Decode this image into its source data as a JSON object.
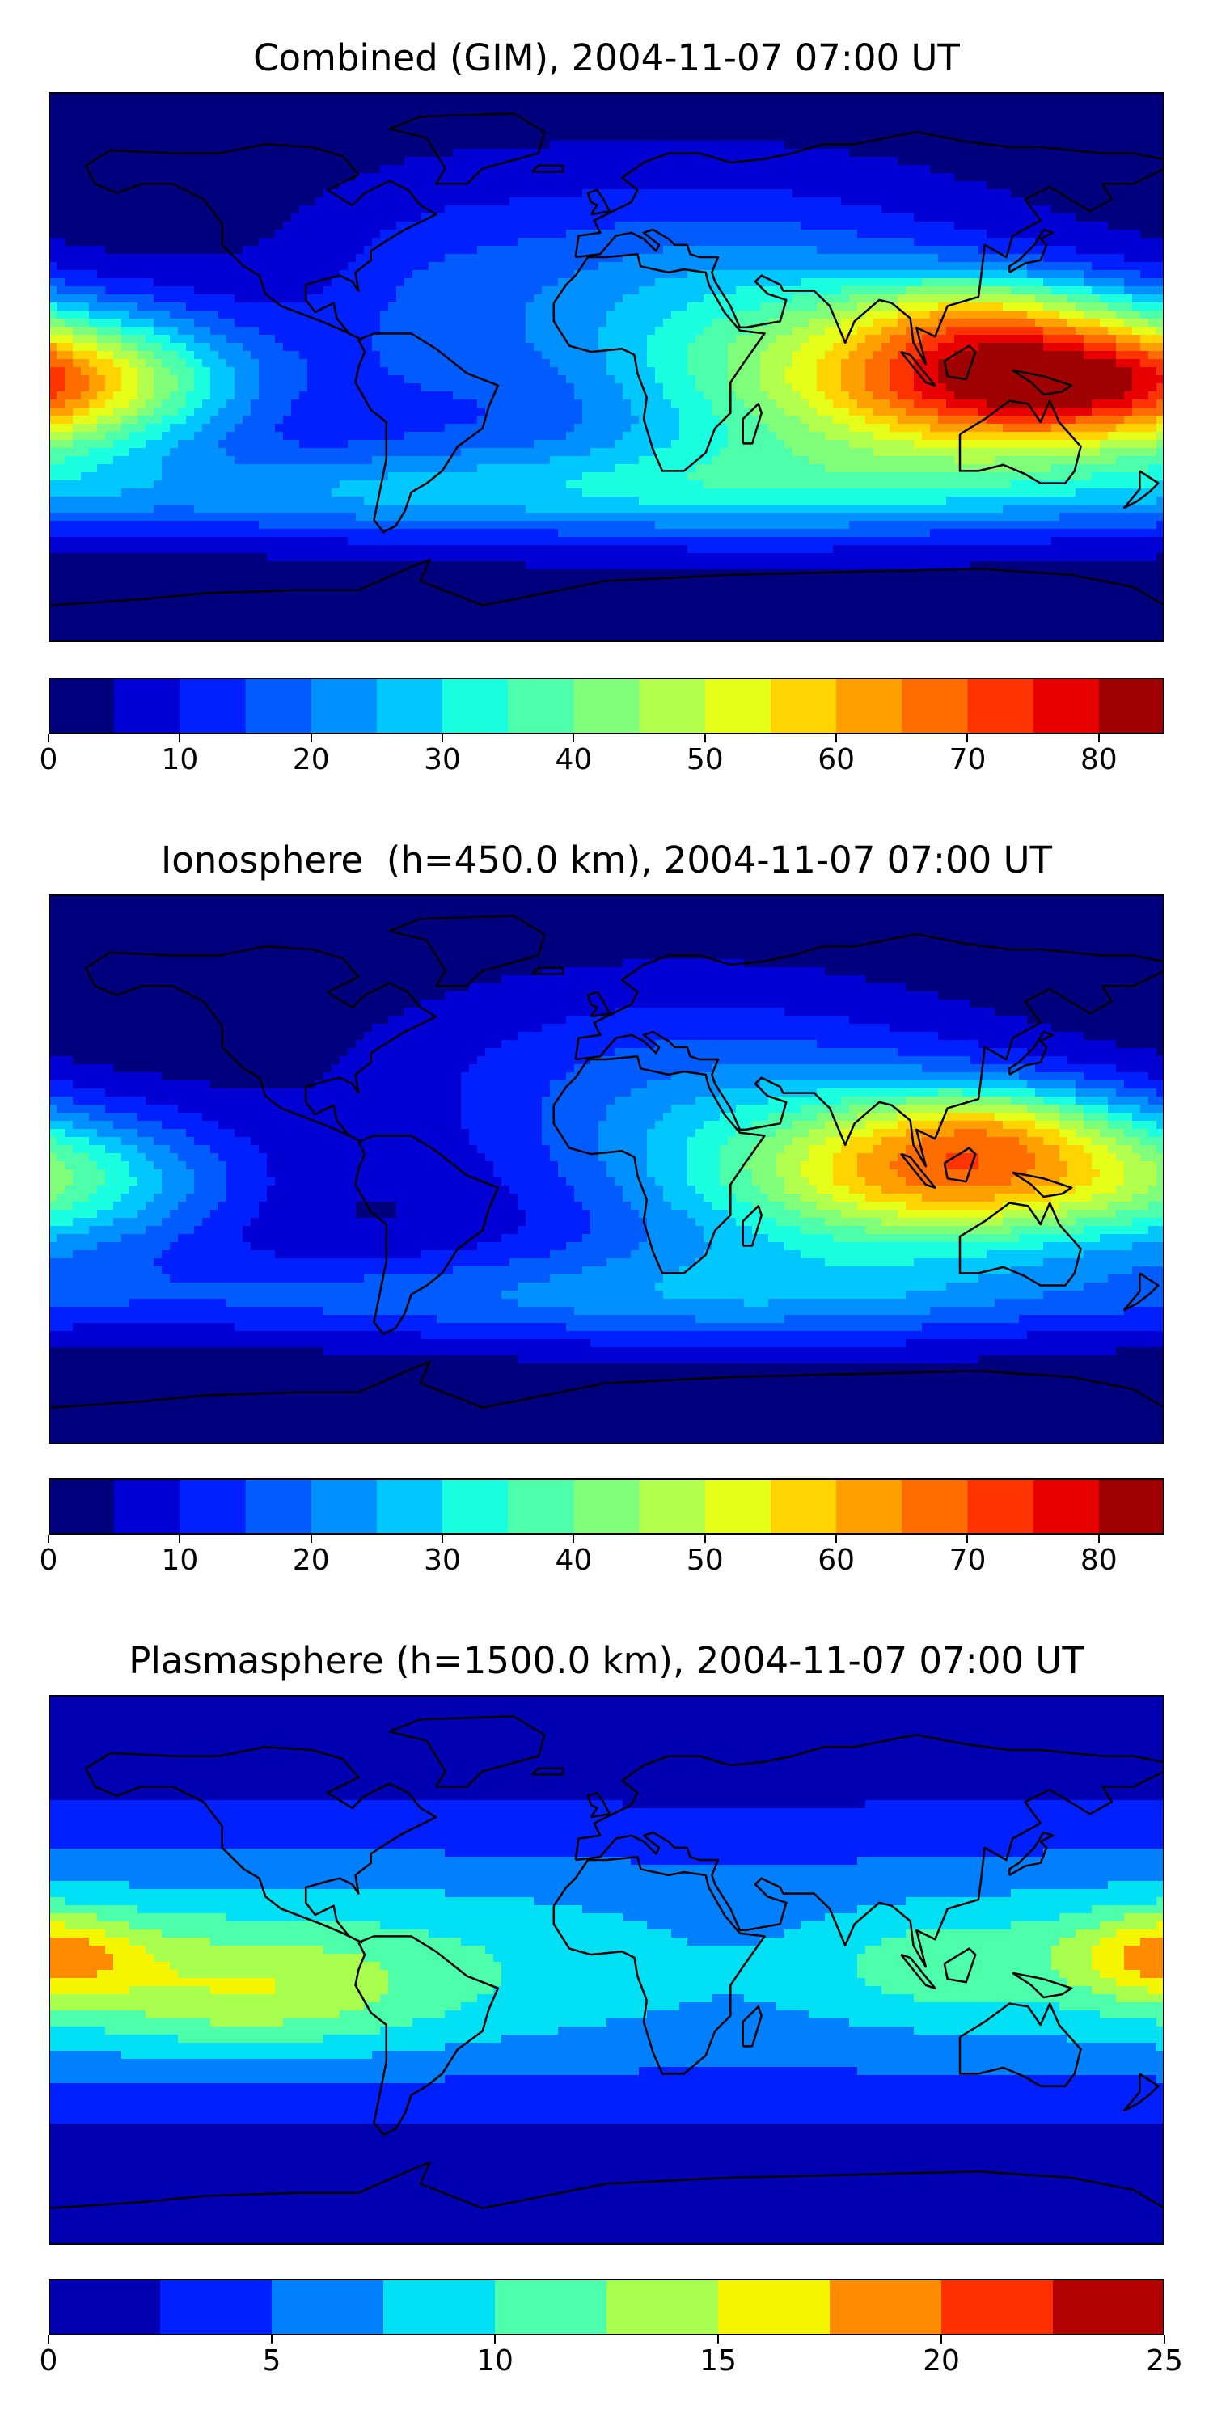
{
  "panels": [
    {
      "title": "Combined (GIM), 2004-11-07 07:00 UT",
      "colorbar": {
        "min": 0,
        "max": 85,
        "step": 5,
        "ticks": [
          "0",
          "10",
          "20",
          "30",
          "40",
          "50",
          "60",
          "70",
          "80"
        ],
        "tick_values": [
          0,
          10,
          20,
          30,
          40,
          50,
          60,
          70,
          80
        ],
        "colors": [
          "#00007f",
          "#0000d4",
          "#0020ff",
          "#005cff",
          "#0090ff",
          "#00c8ff",
          "#1affe0",
          "#4dffaa",
          "#80ff7a",
          "#b3ff4d",
          "#e6ff1a",
          "#ffd400",
          "#ffa000",
          "#ff6c00",
          "#ff3400",
          "#e80000",
          "#9f0000"
        ]
      },
      "field": {
        "base": 2,
        "hotspots": [
          {
            "lon": 135,
            "lat": -5,
            "amp": 63,
            "wx": 45,
            "wy": 17
          },
          {
            "lon": 120,
            "lat": 18,
            "amp": 18,
            "wx": 30,
            "wy": 10
          },
          {
            "lon": 60,
            "lat": -5,
            "amp": 28,
            "wx": 55,
            "wy": 25
          },
          {
            "lon": -165,
            "lat": -5,
            "amp": 33,
            "wx": 40,
            "wy": 17
          },
          {
            "lon": 20,
            "lat": 30,
            "amp": 14,
            "wx": 70,
            "wy": 25
          },
          {
            "lon": 40,
            "lat": -40,
            "amp": 20,
            "wx": 90,
            "wy": 12
          },
          {
            "lon": -120,
            "lat": -42,
            "amp": 15,
            "wx": 80,
            "wy": 10
          },
          {
            "lon": -60,
            "lat": 5,
            "amp": 7,
            "wx": 25,
            "wy": 30
          }
        ]
      }
    },
    {
      "title": "Ionosphere  (h=450.0 km), 2004-11-07 07:00 UT",
      "colorbar": {
        "min": 0,
        "max": 85,
        "step": 5,
        "ticks": [
          "0",
          "10",
          "20",
          "30",
          "40",
          "50",
          "60",
          "70",
          "80"
        ],
        "tick_values": [
          0,
          10,
          20,
          30,
          40,
          50,
          60,
          70,
          80
        ],
        "colors": [
          "#00007f",
          "#0000d4",
          "#0020ff",
          "#005cff",
          "#0090ff",
          "#00c8ff",
          "#1affe0",
          "#4dffaa",
          "#80ff7a",
          "#b3ff4d",
          "#e6ff1a",
          "#ffd400",
          "#ffa000",
          "#ff6c00",
          "#ff3400",
          "#e80000",
          "#9f0000"
        ]
      },
      "field": {
        "base": 1,
        "hotspots": [
          {
            "lon": 120,
            "lat": 0,
            "amp": 50,
            "wx": 45,
            "wy": 17
          },
          {
            "lon": 125,
            "lat": 16,
            "amp": 12,
            "wx": 25,
            "wy": 8
          },
          {
            "lon": 60,
            "lat": -5,
            "amp": 22,
            "wx": 55,
            "wy": 25
          },
          {
            "lon": -165,
            "lat": -5,
            "amp": 22,
            "wx": 38,
            "wy": 17
          },
          {
            "lon": 20,
            "lat": 30,
            "amp": 12,
            "wx": 70,
            "wy": 25
          },
          {
            "lon": 40,
            "lat": -42,
            "amp": 16,
            "wx": 90,
            "wy": 12
          },
          {
            "lon": -120,
            "lat": -42,
            "amp": 10,
            "wx": 80,
            "wy": 10
          }
        ]
      }
    },
    {
      "title": "Plasmasphere (h=1500.0 km), 2004-11-07 07:00 UT",
      "colorbar": {
        "min": 0,
        "max": 25,
        "step": 2.5,
        "ticks": [
          "0",
          "5",
          "10",
          "15",
          "20",
          "25"
        ],
        "tick_values": [
          0,
          5,
          10,
          15,
          20,
          25
        ],
        "colors": [
          "#0000b3",
          "#0020ff",
          "#0080ff",
          "#00e0f4",
          "#4dffaa",
          "#a8ff4d",
          "#f5f500",
          "#ff8c00",
          "#ff3000",
          "#b30000"
        ]
      },
      "field": {
        "base": 0.5,
        "lat_band": {
          "amp": 9.5,
          "lat0": 2,
          "w": 30
        },
        "hotspots": [
          {
            "lon": -115,
            "lat": -8,
            "amp": 5.5,
            "wx": 40,
            "wy": 14
          },
          {
            "lon": -175,
            "lat": 5,
            "amp": 4.5,
            "wx": 20,
            "wy": 10
          },
          {
            "lon": 175,
            "lat": 5,
            "amp": 4.5,
            "wx": 20,
            "wy": 10
          },
          {
            "lon": 105,
            "lat": 2,
            "amp": 3,
            "wx": 25,
            "wy": 10
          },
          {
            "lon": 45,
            "lat": 5,
            "amp": -2.5,
            "wx": 45,
            "wy": 20
          }
        ]
      }
    }
  ]
}
